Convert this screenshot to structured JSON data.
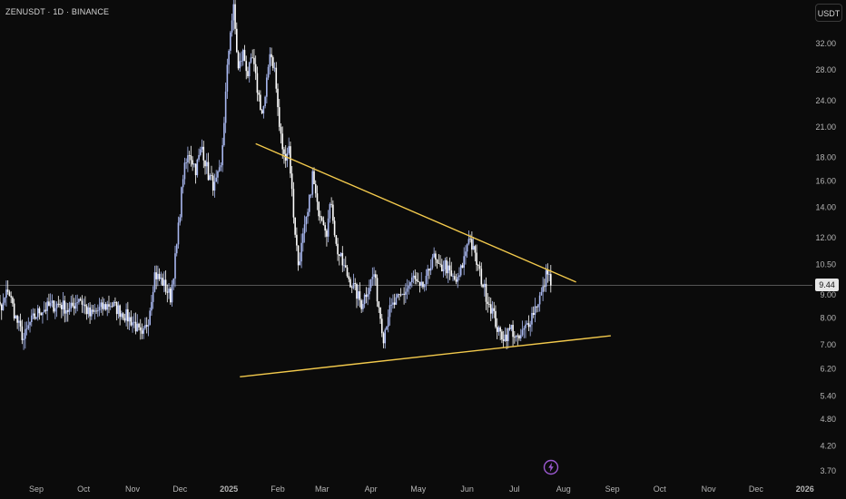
{
  "header": {
    "symbol_line": "ZENUSDT · 1D · BINANCE"
  },
  "currency_badge": "USDT",
  "last_price_label": "9.44",
  "icons": {
    "bottom_marker": "lightning-bolt-icon"
  },
  "colors": {
    "background": "#0b0b0b",
    "candle": "#a9b8f0",
    "candle_bright": "#ffffff",
    "trendline": "#f2c94c",
    "price_line": "#555555",
    "axis_text": "#b5b5b5",
    "price_tag_bg": "#e6e6e6",
    "bolt": "#9b59d0"
  },
  "chart_data": {
    "type": "candlestick",
    "title": "ZENUSDT · 1D · BINANCE",
    "scale": "log",
    "y_ticks": [
      32.0,
      28.0,
      24.0,
      21.0,
      18.0,
      16.0,
      14.0,
      12.0,
      10.5,
      9.0,
      8.0,
      7.0,
      6.2,
      5.4,
      4.8,
      4.2,
      3.7
    ],
    "y_tick_labels": [
      "32.00",
      "28.00",
      "24.00",
      "21.00",
      "18.00",
      "16.00",
      "14.00",
      "12.00",
      "10.50",
      "9.00",
      "8.00",
      "7.00",
      "6.20",
      "5.40",
      "4.80",
      "4.20",
      "3.70"
    ],
    "x_tick_labels": [
      "Sep",
      "Oct",
      "Nov",
      "Dec",
      "2025",
      "Feb",
      "Mar",
      "Apr",
      "May",
      "Jun",
      "Jul",
      "Aug",
      "Sep",
      "Oct",
      "Nov",
      "Dec",
      "2026"
    ],
    "x_tick_dates": [
      "2024-09-01",
      "2024-10-01",
      "2024-11-01",
      "2024-12-01",
      "2025-01-01",
      "2025-02-01",
      "2025-03-01",
      "2025-04-01",
      "2025-05-01",
      "2025-06-01",
      "2025-07-01",
      "2025-08-01",
      "2025-09-01",
      "2025-10-01",
      "2025-11-01",
      "2025-12-01",
      "2026-01-01"
    ],
    "price_path": [
      [
        "2024-08-01",
        8.7
      ],
      [
        "2024-08-05",
        8.9
      ],
      [
        "2024-08-10",
        8.3
      ],
      [
        "2024-08-14",
        9.3
      ],
      [
        "2024-08-19",
        8.0
      ],
      [
        "2024-08-24",
        7.2
      ],
      [
        "2024-08-28",
        7.8
      ],
      [
        "2024-09-03",
        8.3
      ],
      [
        "2024-09-10",
        8.5
      ],
      [
        "2024-09-16",
        8.6
      ],
      [
        "2024-09-22",
        8.3
      ],
      [
        "2024-09-28",
        8.9
      ],
      [
        "2024-10-05",
        8.1
      ],
      [
        "2024-10-12",
        8.4
      ],
      [
        "2024-10-18",
        8.6
      ],
      [
        "2024-10-26",
        8.2
      ],
      [
        "2024-11-02",
        7.8
      ],
      [
        "2024-11-07",
        7.2
      ],
      [
        "2024-11-11",
        8.0
      ],
      [
        "2024-11-15",
        10.0
      ],
      [
        "2024-11-20",
        9.6
      ],
      [
        "2024-11-25",
        8.9
      ],
      [
        "2024-11-29",
        11.5
      ],
      [
        "2024-12-03",
        16.5
      ],
      [
        "2024-12-07",
        18.5
      ],
      [
        "2024-12-11",
        17.0
      ],
      [
        "2024-12-15",
        19.0
      ],
      [
        "2024-12-19",
        16.5
      ],
      [
        "2024-12-23",
        15.5
      ],
      [
        "2024-12-27",
        17.0
      ],
      [
        "2024-12-31",
        28.0
      ],
      [
        "2025-01-02",
        34.5
      ],
      [
        "2025-01-04",
        38.0
      ],
      [
        "2025-01-07",
        28.0
      ],
      [
        "2025-01-10",
        30.5
      ],
      [
        "2025-01-13",
        27.5
      ],
      [
        "2025-01-16",
        29.5
      ],
      [
        "2025-01-19",
        25.5
      ],
      [
        "2025-01-22",
        22.5
      ],
      [
        "2025-01-24",
        24.0
      ],
      [
        "2025-01-27",
        31.0
      ],
      [
        "2025-01-30",
        28.0
      ],
      [
        "2025-02-02",
        21.0
      ],
      [
        "2025-02-05",
        18.0
      ],
      [
        "2025-02-08",
        19.0
      ],
      [
        "2025-02-11",
        13.5
      ],
      [
        "2025-02-14",
        10.5
      ],
      [
        "2025-02-17",
        12.0
      ],
      [
        "2025-02-20",
        13.5
      ],
      [
        "2025-02-23",
        16.5
      ],
      [
        "2025-02-26",
        14.0
      ],
      [
        "2025-03-01",
        13.5
      ],
      [
        "2025-03-04",
        12.5
      ],
      [
        "2025-03-07",
        14.5
      ],
      [
        "2025-03-10",
        11.5
      ],
      [
        "2025-03-14",
        10.5
      ],
      [
        "2025-03-18",
        9.8
      ],
      [
        "2025-03-22",
        9.2
      ],
      [
        "2025-03-26",
        8.6
      ],
      [
        "2025-03-30",
        9.3
      ],
      [
        "2025-04-03",
        10.0
      ],
      [
        "2025-04-06",
        8.5
      ],
      [
        "2025-04-09",
        7.3
      ],
      [
        "2025-04-12",
        8.2
      ],
      [
        "2025-04-16",
        8.6
      ],
      [
        "2025-04-20",
        8.9
      ],
      [
        "2025-04-24",
        9.3
      ],
      [
        "2025-04-28",
        9.8
      ],
      [
        "2025-05-02",
        9.2
      ],
      [
        "2025-05-06",
        9.6
      ],
      [
        "2025-05-10",
        11.0
      ],
      [
        "2025-05-14",
        10.2
      ],
      [
        "2025-05-18",
        10.5
      ],
      [
        "2025-05-22",
        9.8
      ],
      [
        "2025-05-26",
        9.6
      ],
      [
        "2025-05-30",
        10.8
      ],
      [
        "2025-06-02",
        12.2
      ],
      [
        "2025-06-05",
        11.2
      ],
      [
        "2025-06-09",
        10.0
      ],
      [
        "2025-06-13",
        9.0
      ],
      [
        "2025-06-17",
        8.3
      ],
      [
        "2025-06-21",
        7.4
      ],
      [
        "2025-06-25",
        7.3
      ],
      [
        "2025-06-29",
        7.6
      ],
      [
        "2025-07-03",
        7.1
      ],
      [
        "2025-07-07",
        7.5
      ],
      [
        "2025-07-11",
        8.0
      ],
      [
        "2025-07-15",
        8.6
      ],
      [
        "2025-07-19",
        9.2
      ],
      [
        "2025-07-22",
        10.3
      ],
      [
        "2025-07-24",
        9.44
      ]
    ],
    "trendlines": [
      {
        "name": "upper",
        "from": [
          "2025-01-18",
          19.3
        ],
        "to": [
          "2025-08-09",
          9.6
        ]
      },
      {
        "name": "lower",
        "from": [
          "2025-01-08",
          5.95
        ],
        "to": [
          "2025-08-31",
          7.32
        ]
      }
    ],
    "last_price": 9.44,
    "grid": false
  }
}
